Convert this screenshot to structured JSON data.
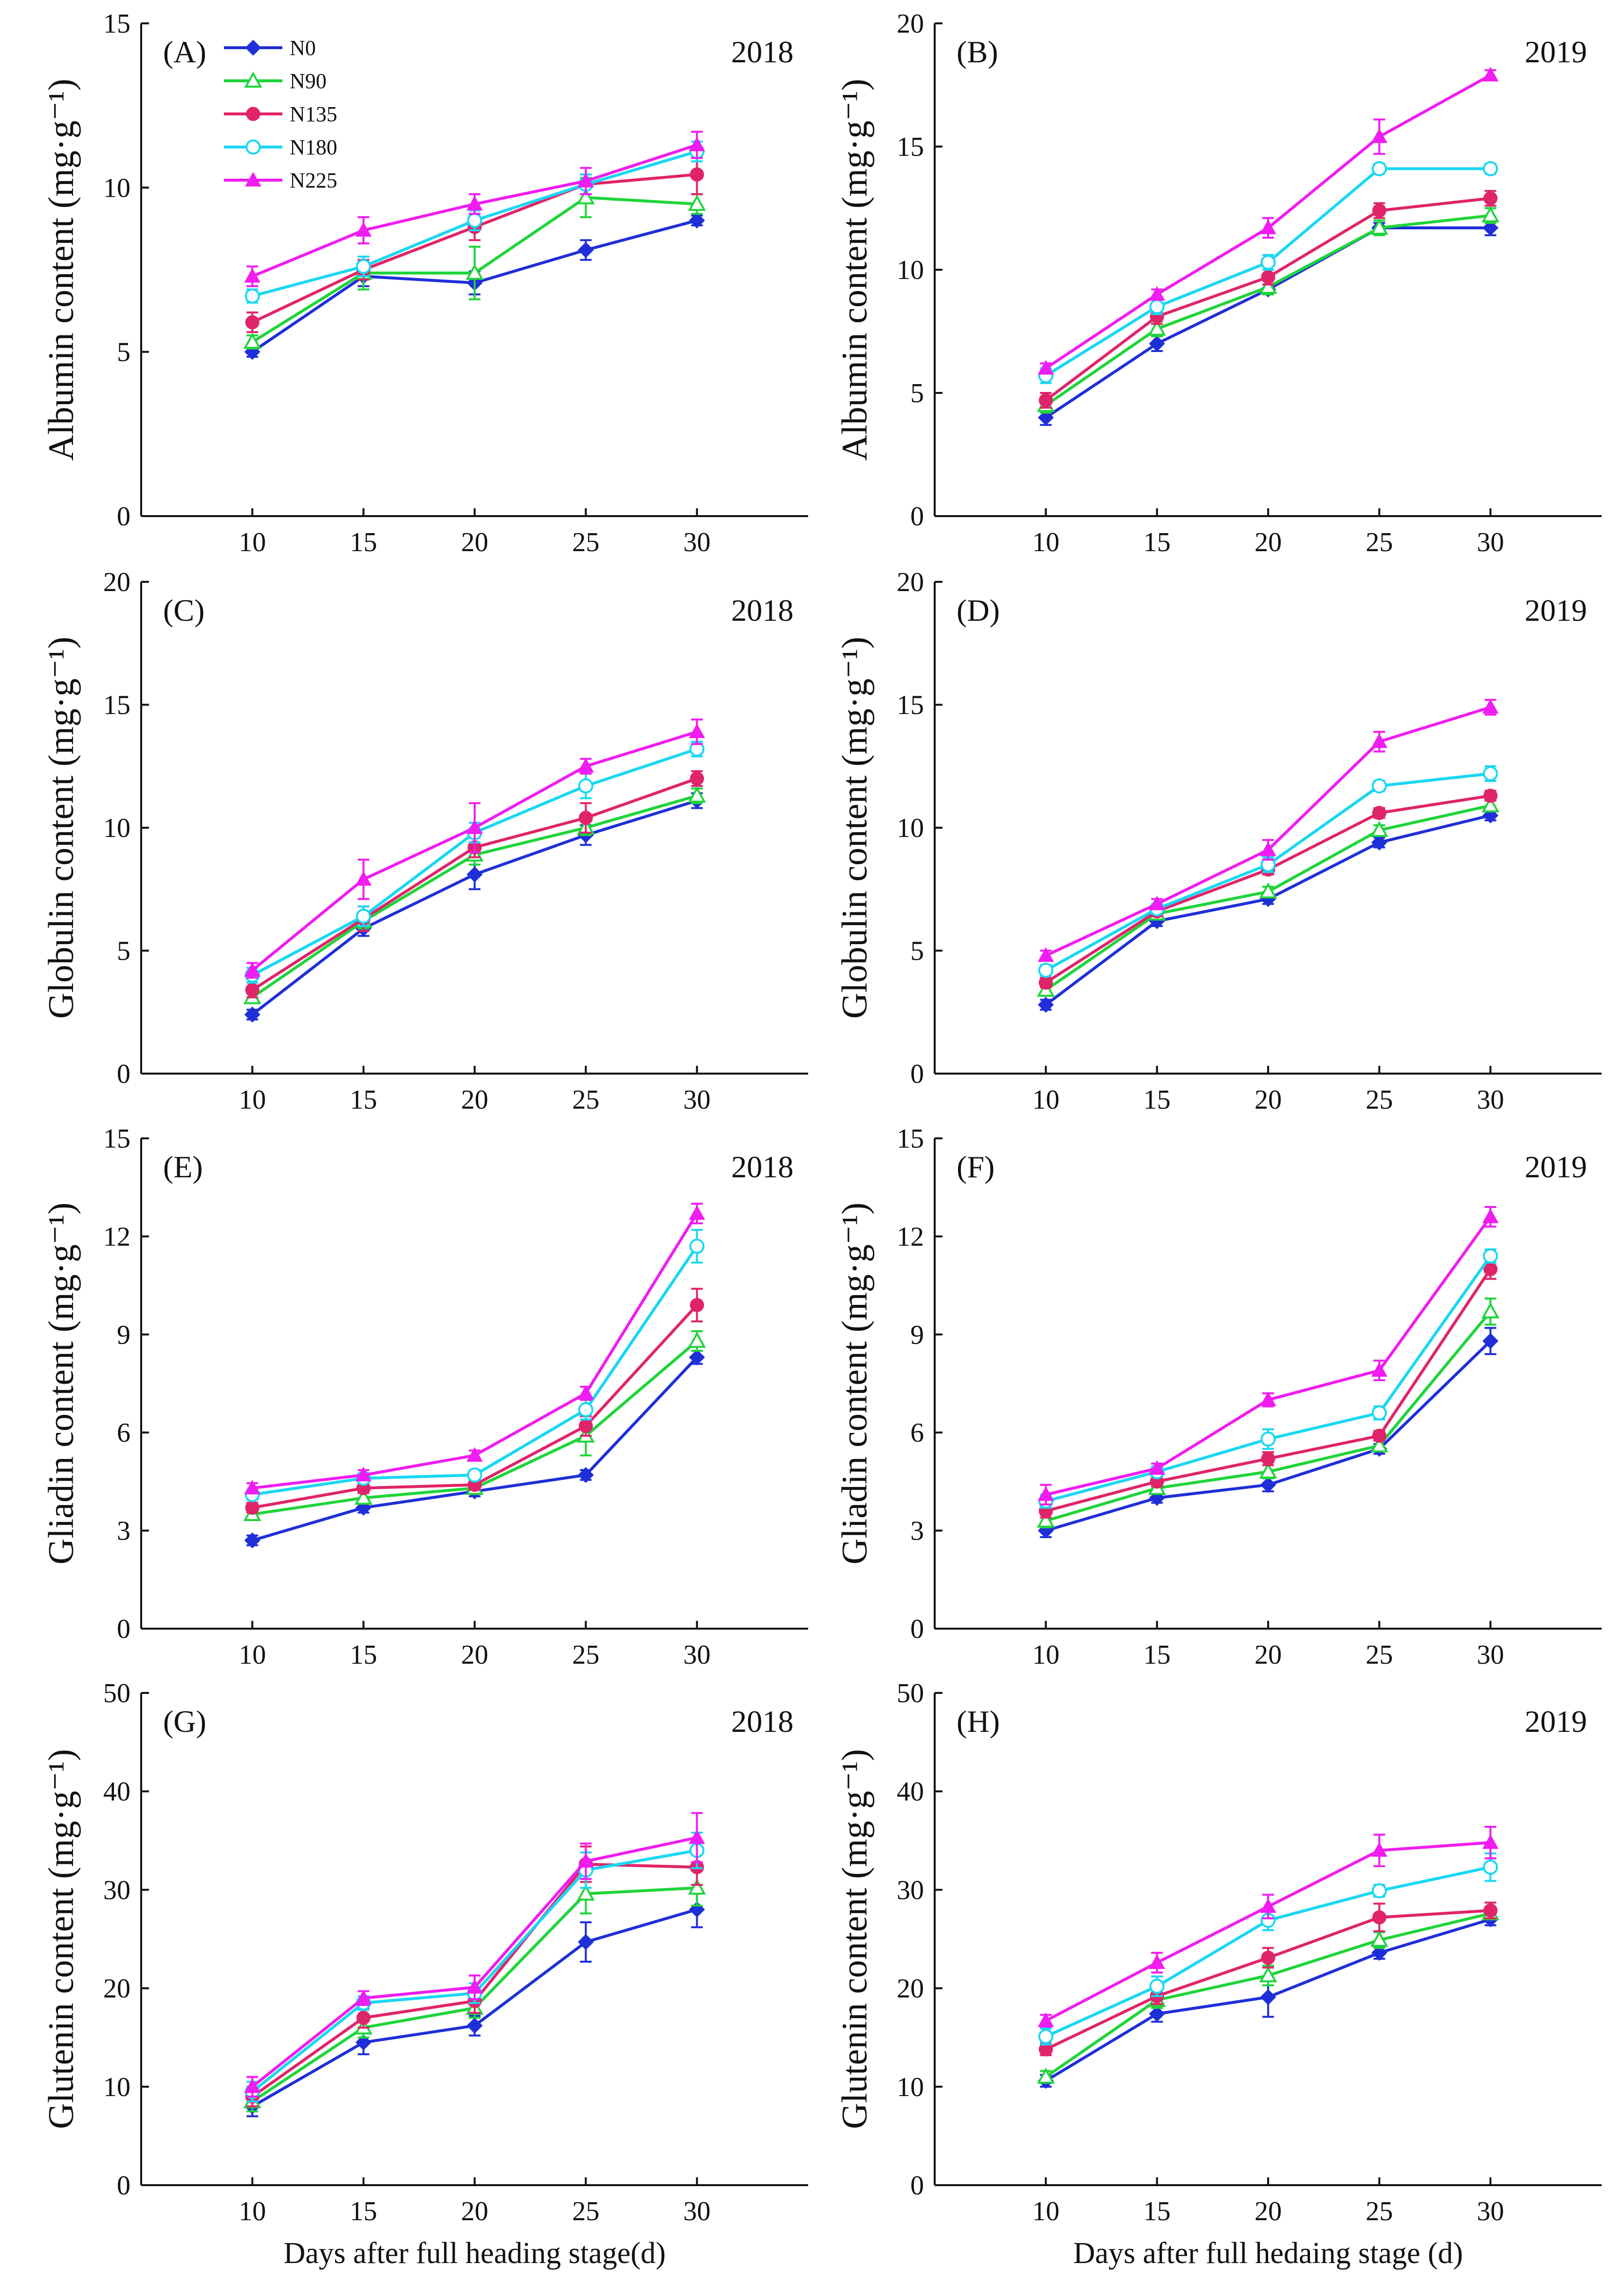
{
  "figure": {
    "legend": [
      "N0",
      "N90",
      "N135",
      "N180",
      "N225"
    ]
  },
  "colors": {
    "N0": "#1f2fd8",
    "N90": "#1fd43a",
    "N135": "#e0246a",
    "N180": "#19d7f2",
    "N225": "#f01cf0"
  },
  "chart_data": [
    {
      "type": "line",
      "panel": "(A)",
      "year": "2018",
      "ylabel": "Albumin content (mg·g⁻¹)",
      "xlabel": "",
      "x": [
        10,
        15,
        20,
        25,
        30
      ],
      "ylim": [
        0,
        15
      ],
      "yticks": [
        0,
        5,
        10,
        15
      ],
      "series": [
        {
          "name": "N0",
          "values": [
            5.0,
            7.3,
            7.1,
            8.1,
            9.0
          ],
          "err": [
            0.15,
            0.3,
            0.35,
            0.3,
            0.15
          ]
        },
        {
          "name": "N90",
          "values": [
            5.3,
            7.4,
            7.4,
            9.7,
            9.5
          ],
          "err": [
            0.2,
            0.5,
            0.8,
            0.6,
            0.3
          ]
        },
        {
          "name": "N135",
          "values": [
            5.9,
            7.5,
            8.8,
            10.1,
            10.4
          ],
          "err": [
            0.3,
            0.3,
            0.4,
            0.3,
            0.6
          ]
        },
        {
          "name": "N180",
          "values": [
            6.7,
            7.6,
            9.0,
            10.1,
            11.1
          ],
          "err": [
            0.2,
            0.3,
            0.3,
            0.3,
            0.3
          ]
        },
        {
          "name": "N225",
          "values": [
            7.3,
            8.7,
            9.5,
            10.2,
            11.3
          ],
          "err": [
            0.3,
            0.4,
            0.3,
            0.4,
            0.4
          ]
        }
      ]
    },
    {
      "type": "line",
      "panel": "(B)",
      "year": "2019",
      "ylabel": "Albumin content (mg·g⁻¹)",
      "xlabel": "",
      "x": [
        10,
        15,
        20,
        25,
        30
      ],
      "ylim": [
        0,
        20
      ],
      "yticks": [
        0,
        5,
        10,
        15,
        20
      ],
      "series": [
        {
          "name": "N0",
          "values": [
            4.0,
            7.0,
            9.2,
            11.7,
            11.7
          ],
          "err": [
            0.3,
            0.3,
            0.2,
            0.2,
            0.3
          ]
        },
        {
          "name": "N90",
          "values": [
            4.5,
            7.6,
            9.3,
            11.7,
            12.2
          ],
          "err": [
            0.3,
            0.3,
            0.3,
            0.3,
            0.3
          ]
        },
        {
          "name": "N135",
          "values": [
            4.7,
            8.1,
            9.7,
            12.4,
            12.9
          ],
          "err": [
            0.3,
            0.3,
            0.3,
            0.3,
            0.3
          ]
        },
        {
          "name": "N180",
          "values": [
            5.7,
            8.5,
            10.3,
            14.1,
            14.1
          ],
          "err": [
            0.3,
            0.3,
            0.3,
            0.2,
            0.2
          ]
        },
        {
          "name": "N225",
          "values": [
            6.0,
            9.0,
            11.7,
            15.4,
            17.9
          ],
          "err": [
            0.2,
            0.2,
            0.4,
            0.7,
            0.2
          ]
        }
      ]
    },
    {
      "type": "line",
      "panel": "(C)",
      "year": "2018",
      "ylabel": "Globulin content (mg·g⁻¹)",
      "xlabel": "",
      "x": [
        10,
        15,
        20,
        25,
        30
      ],
      "ylim": [
        0,
        20
      ],
      "yticks": [
        0,
        5,
        10,
        15,
        20
      ],
      "series": [
        {
          "name": "N0",
          "values": [
            2.4,
            5.9,
            8.1,
            9.7,
            11.1
          ],
          "err": [
            0.2,
            0.3,
            0.6,
            0.4,
            0.3
          ]
        },
        {
          "name": "N90",
          "values": [
            3.1,
            6.2,
            8.9,
            10.0,
            11.3
          ],
          "err": [
            0.2,
            0.3,
            0.4,
            0.3,
            0.3
          ]
        },
        {
          "name": "N135",
          "values": [
            3.4,
            6.3,
            9.2,
            10.4,
            12.0
          ],
          "err": [
            0.3,
            0.5,
            0.4,
            0.6,
            0.3
          ]
        },
        {
          "name": "N180",
          "values": [
            4.0,
            6.4,
            9.8,
            11.7,
            13.2
          ],
          "err": [
            0.3,
            0.4,
            0.4,
            0.5,
            0.3
          ]
        },
        {
          "name": "N225",
          "values": [
            4.2,
            7.9,
            10.0,
            12.5,
            13.9
          ],
          "err": [
            0.3,
            0.8,
            1.0,
            0.3,
            0.5
          ]
        }
      ]
    },
    {
      "type": "line",
      "panel": "(D)",
      "year": "2019",
      "ylabel": "Globulin content (mg·g⁻¹)",
      "xlabel": "",
      "x": [
        10,
        15,
        20,
        25,
        30
      ],
      "ylim": [
        0,
        20
      ],
      "yticks": [
        0,
        5,
        10,
        15,
        20
      ],
      "series": [
        {
          "name": "N0",
          "values": [
            2.8,
            6.2,
            7.1,
            9.4,
            10.5
          ],
          "err": [
            0.2,
            0.2,
            0.2,
            0.2,
            0.2
          ]
        },
        {
          "name": "N90",
          "values": [
            3.4,
            6.5,
            7.4,
            9.9,
            10.9
          ],
          "err": [
            0.2,
            0.2,
            0.2,
            0.2,
            0.2
          ]
        },
        {
          "name": "N135",
          "values": [
            3.7,
            6.6,
            8.3,
            10.6,
            11.3
          ],
          "err": [
            0.2,
            0.2,
            0.2,
            0.2,
            0.2
          ]
        },
        {
          "name": "N180",
          "values": [
            4.2,
            6.7,
            8.5,
            11.7,
            12.2
          ],
          "err": [
            0.2,
            0.2,
            0.3,
            0.2,
            0.3
          ]
        },
        {
          "name": "N225",
          "values": [
            4.8,
            6.9,
            9.1,
            13.5,
            14.9
          ],
          "err": [
            0.2,
            0.2,
            0.4,
            0.4,
            0.3
          ]
        }
      ]
    },
    {
      "type": "line",
      "panel": "(E)",
      "year": "2018",
      "ylabel": "Gliadin content (mg·g⁻¹)",
      "xlabel": "",
      "x": [
        10,
        15,
        20,
        25,
        30
      ],
      "ylim": [
        0,
        15
      ],
      "yticks": [
        0,
        3,
        6,
        9,
        12,
        15
      ],
      "series": [
        {
          "name": "N0",
          "values": [
            2.7,
            3.7,
            4.2,
            4.7,
            8.3
          ],
          "err": [
            0.15,
            0.15,
            0.15,
            0.15,
            0.2
          ]
        },
        {
          "name": "N90",
          "values": [
            3.5,
            4.0,
            4.3,
            5.9,
            8.8
          ],
          "err": [
            0.15,
            0.15,
            0.15,
            0.6,
            0.3
          ]
        },
        {
          "name": "N135",
          "values": [
            3.7,
            4.3,
            4.4,
            6.2,
            9.9
          ],
          "err": [
            0.15,
            0.15,
            0.15,
            0.3,
            0.5
          ]
        },
        {
          "name": "N180",
          "values": [
            4.1,
            4.6,
            4.7,
            6.7,
            11.7
          ],
          "err": [
            0.15,
            0.15,
            0.15,
            0.3,
            0.5
          ]
        },
        {
          "name": "N225",
          "values": [
            4.3,
            4.7,
            5.3,
            7.2,
            12.7
          ],
          "err": [
            0.15,
            0.15,
            0.15,
            0.2,
            0.3
          ]
        }
      ]
    },
    {
      "type": "line",
      "panel": "(F)",
      "year": "2019",
      "ylabel": "Gliadin content (mg·g⁻¹)",
      "xlabel": "",
      "x": [
        10,
        15,
        20,
        25,
        30
      ],
      "ylim": [
        0,
        15
      ],
      "yticks": [
        0,
        3,
        6,
        9,
        12,
        15
      ],
      "series": [
        {
          "name": "N0",
          "values": [
            3.0,
            4.0,
            4.4,
            5.5,
            8.8
          ],
          "err": [
            0.2,
            0.15,
            0.2,
            0.15,
            0.4
          ]
        },
        {
          "name": "N90",
          "values": [
            3.3,
            4.3,
            4.8,
            5.6,
            9.7
          ],
          "err": [
            0.2,
            0.15,
            0.2,
            0.15,
            0.4
          ]
        },
        {
          "name": "N135",
          "values": [
            3.6,
            4.5,
            5.2,
            5.9,
            11.0
          ],
          "err": [
            0.2,
            0.15,
            0.2,
            0.15,
            0.3
          ]
        },
        {
          "name": "N180",
          "values": [
            3.9,
            4.8,
            5.8,
            6.6,
            11.4
          ],
          "err": [
            0.2,
            0.15,
            0.3,
            0.2,
            0.2
          ]
        },
        {
          "name": "N225",
          "values": [
            4.1,
            4.9,
            7.0,
            7.9,
            12.6
          ],
          "err": [
            0.3,
            0.15,
            0.2,
            0.3,
            0.3
          ]
        }
      ]
    },
    {
      "type": "line",
      "panel": "(G)",
      "year": "2018",
      "ylabel": "Glutenin content (mg·g⁻¹)",
      "xlabel": "Days after full heading stage(d)",
      "x": [
        10,
        15,
        20,
        25,
        30
      ],
      "ylim": [
        0,
        50
      ],
      "yticks": [
        0,
        10,
        20,
        30,
        40,
        50
      ],
      "series": [
        {
          "name": "N0",
          "values": [
            8.0,
            14.5,
            16.2,
            24.7,
            28.0
          ],
          "err": [
            1.0,
            1.2,
            1.0,
            2.0,
            1.8
          ]
        },
        {
          "name": "N90",
          "values": [
            8.5,
            16.0,
            18.0,
            29.6,
            30.2
          ],
          "err": [
            1.0,
            1.0,
            1.0,
            2.0,
            1.8
          ]
        },
        {
          "name": "N135",
          "values": [
            9.0,
            17.0,
            18.7,
            32.6,
            32.3
          ],
          "err": [
            1.0,
            1.0,
            1.2,
            1.8,
            1.8
          ]
        },
        {
          "name": "N180",
          "values": [
            9.5,
            18.5,
            19.5,
            32.0,
            34.0
          ],
          "err": [
            1.0,
            0.7,
            1.0,
            1.8,
            1.8
          ]
        },
        {
          "name": "N225",
          "values": [
            10.0,
            19.0,
            20.1,
            32.9,
            35.3
          ],
          "err": [
            1.0,
            0.7,
            1.2,
            1.8,
            2.5
          ]
        }
      ]
    },
    {
      "type": "line",
      "panel": "(H)",
      "year": "2019",
      "ylabel": "Glutenin content (mg·g⁻¹)",
      "xlabel": "Days after full hedaing stage (d)",
      "x": [
        10,
        15,
        20,
        25,
        30
      ],
      "ylim": [
        0,
        50
      ],
      "yticks": [
        0,
        10,
        20,
        30,
        40,
        50
      ],
      "series": [
        {
          "name": "N0",
          "values": [
            10.6,
            17.4,
            19.1,
            23.6,
            27.0
          ],
          "err": [
            0.6,
            0.8,
            2.0,
            0.6,
            0.6
          ]
        },
        {
          "name": "N90",
          "values": [
            11.0,
            18.8,
            21.3,
            24.9,
            27.6
          ],
          "err": [
            0.6,
            0.8,
            1.0,
            0.8,
            0.6
          ]
        },
        {
          "name": "N135",
          "values": [
            13.8,
            19.2,
            23.1,
            27.2,
            27.9
          ],
          "err": [
            0.6,
            0.8,
            1.0,
            1.4,
            0.8
          ]
        },
        {
          "name": "N180",
          "values": [
            15.1,
            20.2,
            26.9,
            29.9,
            32.3
          ],
          "err": [
            0.8,
            1.0,
            1.0,
            0.6,
            1.4
          ]
        },
        {
          "name": "N225",
          "values": [
            16.7,
            22.6,
            28.3,
            34.0,
            34.8
          ],
          "err": [
            0.6,
            1.0,
            1.2,
            1.6,
            1.6
          ]
        }
      ]
    }
  ]
}
